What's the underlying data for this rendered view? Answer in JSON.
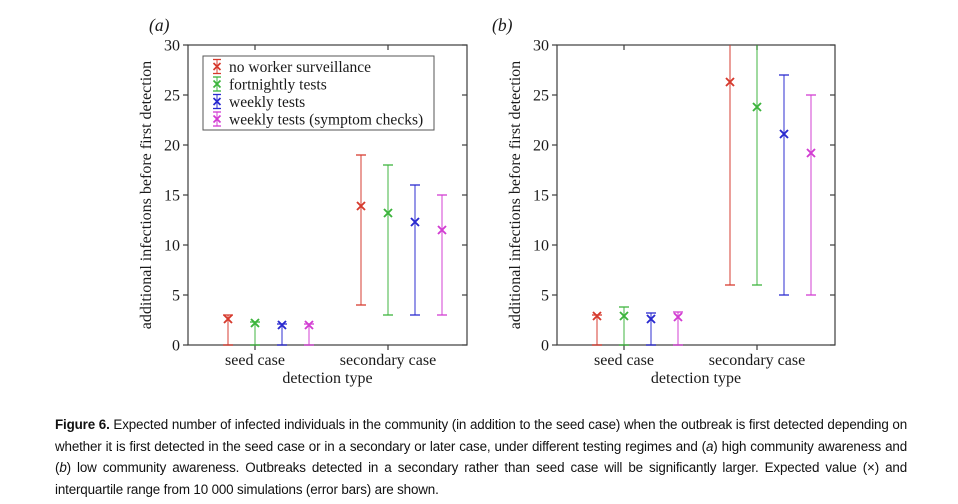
{
  "page": {
    "background": "#ffffff",
    "frame_color": "#3c3c3c",
    "text_color": "#1a1a1a"
  },
  "figure": {
    "caption_segments": [
      {
        "text": "Figure 6. ",
        "style": "bold"
      },
      {
        "text": "Expected number of infected individuals in the community (in addition to the seed case) when the outbreak is first detected depending on whether it is first detected in the seed case or in a secondary or later case, under different testing regimes and (",
        "style": "normal"
      },
      {
        "text": "a",
        "style": "italic"
      },
      {
        "text": ") high community awareness and (",
        "style": "normal"
      },
      {
        "text": "b",
        "style": "italic"
      },
      {
        "text": ") low community awareness. Outbreaks detected in a secondary rather than seed case will be significantly larger. Expected value (×) and interquartile range from 10 000 simulations (error bars) are shown.",
        "style": "normal"
      }
    ]
  },
  "chart_data": [
    {
      "type": "errorbar",
      "panel_label": "(a)",
      "xlabel": "detection type",
      "ylabel": "additional infections before first detection",
      "ylim": [
        0,
        30
      ],
      "yticks": [
        0,
        5,
        10,
        15,
        20,
        25,
        30
      ],
      "grid": false,
      "categories": [
        "seed case",
        "secondary case"
      ],
      "legend_position": "top-left",
      "legend_visible": true,
      "series": [
        {
          "name": "no worker surveillance",
          "color": "#d63a2d",
          "points": [
            {
              "category": "seed case",
              "mean": 2.6,
              "q1": 0,
              "q3": 3.0
            },
            {
              "category": "secondary case",
              "mean": 13.9,
              "q1": 4,
              "q3": 19
            }
          ]
        },
        {
          "name": "fortnightly tests",
          "color": "#3cb43c",
          "points": [
            {
              "category": "seed case",
              "mean": 2.2,
              "q1": 0,
              "q3": 2.3
            },
            {
              "category": "secondary case",
              "mean": 13.2,
              "q1": 3,
              "q3": 18
            }
          ]
        },
        {
          "name": "weekly tests",
          "color": "#2929cf",
          "points": [
            {
              "category": "seed case",
              "mean": 2.0,
              "q1": 0,
              "q3": 2.1
            },
            {
              "category": "secondary case",
              "mean": 12.3,
              "q1": 3,
              "q3": 16
            }
          ]
        },
        {
          "name": "weekly tests (symptom checks)",
          "color": "#d23cd2",
          "points": [
            {
              "category": "seed case",
              "mean": 2.0,
              "q1": 0,
              "q3": 2.1
            },
            {
              "category": "secondary case",
              "mean": 11.5,
              "q1": 3,
              "q3": 15
            }
          ]
        }
      ]
    },
    {
      "type": "errorbar",
      "panel_label": "(b)",
      "xlabel": "detection type",
      "ylabel": "additional infections before first detection",
      "ylim": [
        0,
        30
      ],
      "yticks": [
        0,
        5,
        10,
        15,
        20,
        25,
        30
      ],
      "grid": false,
      "categories": [
        "seed case",
        "secondary case"
      ],
      "legend_visible": false,
      "series": [
        {
          "name": "no worker surveillance",
          "color": "#d63a2d",
          "points": [
            {
              "category": "seed case",
              "mean": 2.9,
              "q1": 0,
              "q3": 3.0
            },
            {
              "category": "secondary case",
              "mean": 26.3,
              "q1": 6,
              "q3": 30,
              "q3_clipped": true
            }
          ]
        },
        {
          "name": "fortnightly tests",
          "color": "#3cb43c",
          "points": [
            {
              "category": "seed case",
              "mean": 2.9,
              "q1": 0,
              "q3": 3.8
            },
            {
              "category": "secondary case",
              "mean": 23.8,
              "q1": 6,
              "q3": 30,
              "q3_clipped": true
            }
          ]
        },
        {
          "name": "weekly tests",
          "color": "#2929cf",
          "points": [
            {
              "category": "seed case",
              "mean": 2.6,
              "q1": 0,
              "q3": 3.2
            },
            {
              "category": "secondary case",
              "mean": 21.1,
              "q1": 5,
              "q3": 27
            }
          ]
        },
        {
          "name": "weekly tests (symptom checks)",
          "color": "#d23cd2",
          "points": [
            {
              "category": "seed case",
              "mean": 2.8,
              "q1": 0,
              "q3": 3.3
            },
            {
              "category": "secondary case",
              "mean": 19.2,
              "q1": 5,
              "q3": 25
            }
          ]
        }
      ]
    }
  ]
}
